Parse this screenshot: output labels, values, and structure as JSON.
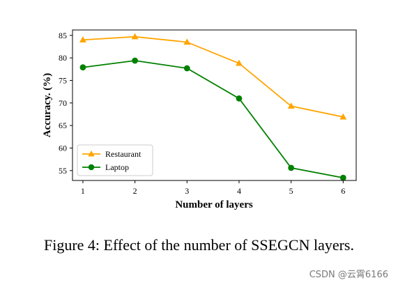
{
  "caption": "Figure 4: Effect of the number of SSEGCN layers.",
  "watermark": "CSDN @云霄6166",
  "chart_data": {
    "type": "line",
    "title": "",
    "xlabel": "Number of layers",
    "ylabel": "Accuracy. (%)",
    "x": [
      1,
      2,
      3,
      4,
      5,
      6
    ],
    "xlim": [
      0.8,
      6.25
    ],
    "ylim": [
      52.8,
      86.2
    ],
    "xticks": [
      1,
      2,
      3,
      4,
      5,
      6
    ],
    "yticks": [
      55,
      60,
      65,
      70,
      75,
      80,
      85
    ],
    "grid": false,
    "legend_position": "lower-left",
    "series": [
      {
        "name": "Restaurant",
        "color": "#FFA500",
        "marker": "triangle",
        "values": [
          84.0,
          84.7,
          83.5,
          78.8,
          69.3,
          66.9
        ]
      },
      {
        "name": "Laptop",
        "color": "#008000",
        "marker": "circle",
        "values": [
          77.9,
          79.4,
          77.7,
          71.0,
          55.6,
          53.4
        ]
      }
    ]
  }
}
